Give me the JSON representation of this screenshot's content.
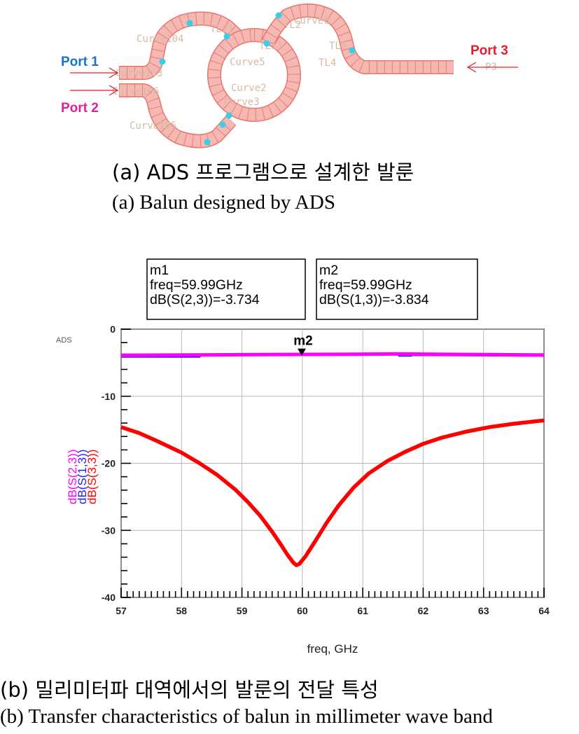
{
  "figure_a": {
    "ports": [
      {
        "label": "Port 1",
        "color": "#1a73c8"
      },
      {
        "label": "Port 2",
        "color": "#e0209c"
      },
      {
        "label": "Port 3",
        "color": "#e0202a"
      }
    ],
    "layout_labels": [
      "Curve104",
      "Curve103",
      "Curve106",
      "Curve105",
      "Curve5",
      "Curve2",
      "Curve3",
      "Curve6",
      "TL6",
      "TL21",
      "TL11",
      "TL2",
      "TL4",
      "P3"
    ],
    "trace_fill": "#f6b8b3",
    "trace_stroke": "#e8766e",
    "via_color": "#33d0e8",
    "caption_ko": "(a)  ADS  프로그램으로  설계한  발룬",
    "caption_en": "(a)  Balun  designed  by  ADS"
  },
  "chart_data": {
    "type": "line",
    "tool_label": "ADS",
    "xlabel": "freq, GHz",
    "xlim": [
      57,
      64
    ],
    "ylim": [
      -40,
      0
    ],
    "x_ticks": [
      "57",
      "58",
      "59",
      "60",
      "61",
      "62",
      "63",
      "64"
    ],
    "y_ticks": [
      "0",
      "-10",
      "-20",
      "-30",
      "-40"
    ],
    "grid": true,
    "legend_position": "left, rotated vertical",
    "series": [
      {
        "name": "dB(S(2,3))",
        "color": "#ff00ff",
        "x": [
          57,
          61.6,
          61.6,
          64
        ],
        "y": [
          -3.9,
          -3.7,
          -3.7,
          -3.85
        ]
      },
      {
        "name": "dB(S(1,3))",
        "color": "#2020ff",
        "x": [
          57,
          58.3,
          58.3,
          61.6,
          61.6,
          61.8,
          61.8,
          64
        ],
        "y": [
          -4.1,
          -4.1,
          -3.85,
          -3.75,
          -3.95,
          -3.95,
          -3.85,
          -3.95
        ]
      },
      {
        "name": "dB(S(3,3))",
        "color": "#ff0000",
        "x": [
          57,
          57.3,
          57.6,
          58,
          58.3,
          58.6,
          58.9,
          59.1,
          59.3,
          59.5,
          59.65,
          59.75,
          59.85,
          59.9,
          59.95,
          60.05,
          60.2,
          60.4,
          60.6,
          60.85,
          61.1,
          61.4,
          61.7,
          62,
          62.3,
          62.7,
          63.1,
          63.5,
          64
        ],
        "y": [
          -14.6,
          -15.5,
          -16.7,
          -18.4,
          -20,
          -21.8,
          -24,
          -25.8,
          -27.8,
          -30.2,
          -32.2,
          -33.6,
          -34.8,
          -35.2,
          -35.0,
          -33.9,
          -31.8,
          -28.9,
          -26.3,
          -23.6,
          -21.5,
          -19.7,
          -18.3,
          -17.1,
          -16.2,
          -15.3,
          -14.6,
          -14.1,
          -13.6
        ]
      }
    ],
    "markers": [
      {
        "name": "m2",
        "x": 59.99,
        "y": -3.834,
        "label_shown": "m2",
        "lines": [
          "m2",
          "freq=59.99GHz",
          "dB(S(1,3))=-3.834"
        ]
      },
      {
        "name": "m1",
        "x": 59.99,
        "y": -3.734,
        "label_shown": "",
        "lines": [
          "m1",
          "freq=59.99GHz",
          "dB(S(2,3))=-3.734"
        ]
      }
    ]
  },
  "figure_b": {
    "caption_ko": "(b)  밀리미터파  대역에서의  발룬의  전달  특성",
    "caption_en": "(b)  Transfer  characteristics  of  balun  in  millimeter  wave  band"
  }
}
